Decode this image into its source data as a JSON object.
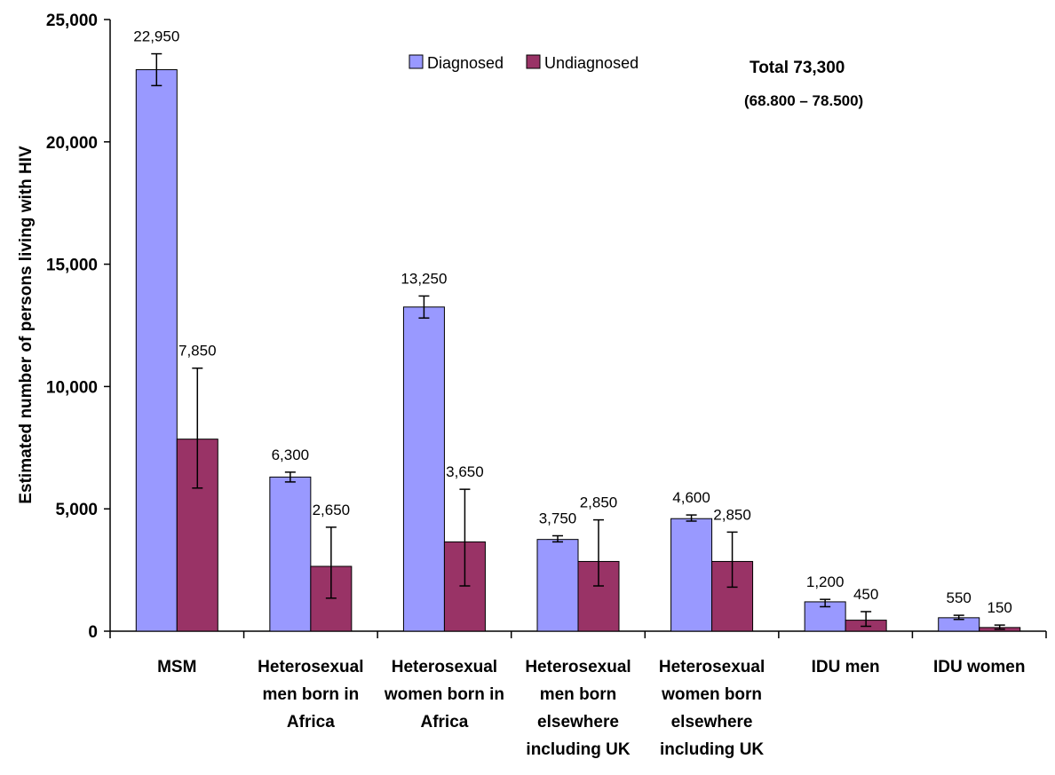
{
  "chart_data": {
    "type": "bar",
    "ylabel": "Estimated number of persons living with HIV",
    "xlabel": "",
    "title": "",
    "ylim": [
      0,
      25000
    ],
    "y_ticks": [
      0,
      5000,
      10000,
      15000,
      20000,
      25000
    ],
    "y_tick_labels": [
      "0",
      "5,000",
      "10,000",
      "15,000",
      "20,000",
      "25,000"
    ],
    "grid": false,
    "legend_placement": "top-center",
    "categories": [
      [
        "MSM"
      ],
      [
        "Heterosexual",
        "men born in",
        "Africa"
      ],
      [
        "Heterosexual",
        "women born in",
        "Africa"
      ],
      [
        "Heterosexual",
        "men born",
        "elsewhere",
        "including UK"
      ],
      [
        "Heterosexual",
        "women born",
        "elsewhere",
        "including UK"
      ],
      [
        "IDU men"
      ],
      [
        "IDU women"
      ]
    ],
    "series": [
      {
        "name": "Diagnosed",
        "color": "#9999ff",
        "values": [
          22950,
          6300,
          13250,
          3750,
          4600,
          1200,
          550
        ],
        "labels": [
          "22,950",
          "6,300",
          "13,250",
          "3,750",
          "4,600",
          "1,200",
          "550"
        ],
        "err_low": [
          22300,
          6100,
          12800,
          3650,
          4500,
          1000,
          480
        ],
        "err_high": [
          23600,
          6500,
          13700,
          3900,
          4750,
          1300,
          650
        ]
      },
      {
        "name": "Undiagnosed",
        "color": "#993366",
        "values": [
          7850,
          2650,
          3650,
          2850,
          2850,
          450,
          150
        ],
        "labels": [
          "7,850",
          "2,650",
          "3,650",
          "2,850",
          "2,850",
          "450",
          "150"
        ],
        "err_low": [
          5850,
          1350,
          1850,
          1850,
          1800,
          200,
          80
        ],
        "err_high": [
          10750,
          4250,
          5800,
          4550,
          4050,
          800,
          250
        ]
      }
    ],
    "annotation": {
      "total": "Total 73,300",
      "range": "(68.800 – 78.500)"
    }
  }
}
